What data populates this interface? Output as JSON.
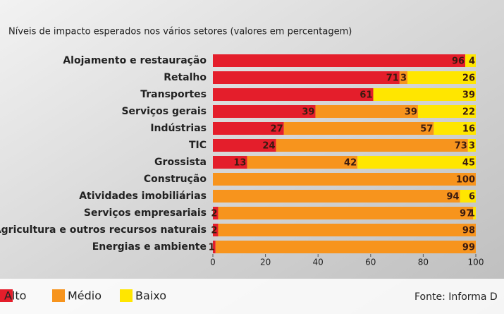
{
  "chart_data": {
    "type": "stacked-bar-horizontal",
    "title": "Níveis de impacto esperados nos vários setores (valores em percentagem)",
    "categories": [
      "Alojamento e restauração",
      "Retalho",
      "Transportes",
      "Serviços gerais",
      "Indústrias",
      "TIC",
      "Grossista",
      "Construção",
      "Atividades imobiliárias",
      "Serviços empresariais",
      "Agricultura e outros recursos naturais",
      "Energias e ambiente"
    ],
    "series": [
      {
        "name": "Alto",
        "color": "#e41e2b",
        "values": [
          96,
          71,
          61,
          39,
          27,
          24,
          13,
          null,
          null,
          2,
          2,
          1
        ]
      },
      {
        "name": "Médio",
        "color": "#f7941d",
        "values": [
          null,
          3,
          null,
          39,
          57,
          73,
          42,
          100,
          94,
          97,
          98,
          99
        ]
      },
      {
        "name": "Baixo",
        "color": "#ffe600",
        "values": [
          4,
          26,
          39,
          22,
          16,
          3,
          45,
          null,
          6,
          1,
          null,
          null
        ]
      }
    ],
    "xlim": [
      0,
      100
    ],
    "xticks": [
      0,
      20,
      40,
      60,
      80,
      100
    ],
    "source": "Fonte: Informa D"
  }
}
